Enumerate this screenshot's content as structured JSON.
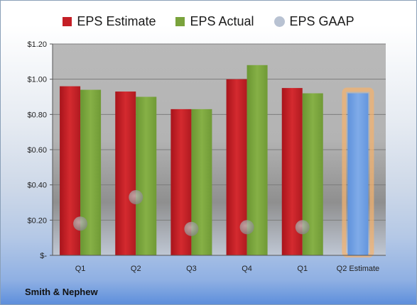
{
  "company": "Smith & Nephew",
  "chart_data": {
    "type": "bar",
    "categories": [
      "Q1",
      "Q2",
      "Q3",
      "Q4",
      "Q1",
      "Q2 Estimate"
    ],
    "series": [
      {
        "name": "EPS Estimate",
        "color": "#c41f26",
        "values": [
          0.96,
          0.93,
          0.83,
          1.0,
          0.95,
          null
        ]
      },
      {
        "name": "EPS Actual",
        "color": "#7aa33c",
        "values": [
          0.94,
          0.9,
          0.83,
          1.08,
          0.92,
          null
        ]
      },
      {
        "name": "EPS GAAP",
        "color": "#aab4c4",
        "marker": "circle",
        "values": [
          0.18,
          0.33,
          0.15,
          0.16,
          0.16,
          null
        ]
      }
    ],
    "estimate_bar": {
      "category": "Q2 Estimate",
      "value": 0.92,
      "color": "#6f9ee0",
      "highlight": "#f6b26b"
    },
    "ylim": [
      0,
      1.2
    ],
    "yticks": [
      0,
      0.2,
      0.4,
      0.6,
      0.8,
      1.0,
      1.2
    ],
    "ytick_labels": [
      "$-",
      "$0.20",
      "$0.40",
      "$0.60",
      "$0.80",
      "$1.00",
      "$1.20"
    ],
    "grid": true,
    "legend_position": "top"
  }
}
